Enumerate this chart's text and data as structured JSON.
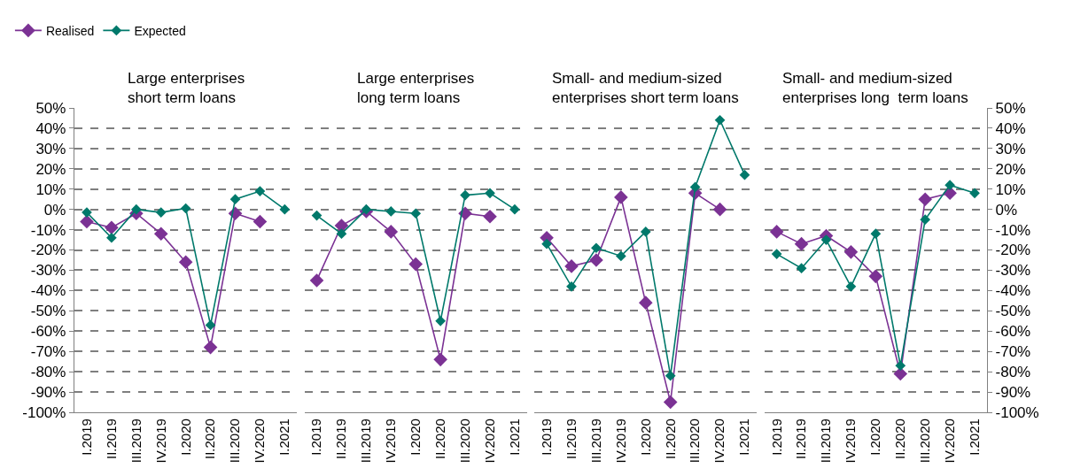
{
  "chart_data": [
    {
      "type": "line",
      "title": "Large enterprises\nshort term loans",
      "categories": [
        "I.2019",
        "II.2019",
        "III.2019",
        "IV.2019",
        "I.2020",
        "II.2020",
        "III.2020",
        "IV.2020",
        "I.2021"
      ],
      "legend": "top left",
      "grid": "y",
      "marker": "diamond",
      "line_style": "solid",
      "ylim": [
        -100,
        50
      ],
      "yticks": [
        {
          "value": 50,
          "label": "50%"
        },
        {
          "value": 40,
          "label": "40%"
        },
        {
          "value": 30,
          "label": "30%"
        },
        {
          "value": 20,
          "label": "20%"
        },
        {
          "value": 10,
          "label": "10%"
        },
        {
          "value": 0,
          "label": "0%"
        },
        {
          "value": -10,
          "label": "-10%"
        },
        {
          "value": -20,
          "label": "-20%"
        },
        {
          "value": -30,
          "label": "-30%"
        },
        {
          "value": -40,
          "label": "-40%"
        },
        {
          "value": -50,
          "label": "-50%"
        },
        {
          "value": -60,
          "label": "-60%"
        },
        {
          "value": -70,
          "label": "-70%"
        },
        {
          "value": -80,
          "label": "-80%"
        },
        {
          "value": -90,
          "label": "-90%"
        },
        {
          "value": -100,
          "label": "-100%"
        }
      ],
      "series": [
        {
          "name": "Realised",
          "color": "#7b3294",
          "values": [
            -6,
            -9,
            -2,
            -12,
            -26,
            -68,
            -2,
            -6,
            null
          ]
        },
        {
          "name": "Expected",
          "color": "#00796b",
          "values": [
            -1.5,
            -14,
            0,
            -1.5,
            0.5,
            -57,
            5,
            9,
            0
          ]
        }
      ]
    },
    {
      "type": "line",
      "title": "Large enterprises\nlong term loans",
      "categories": [
        "I.2019",
        "II.2019",
        "III.2019",
        "IV.2019",
        "I.2020",
        "II.2020",
        "III.2020",
        "IV.2020",
        "I.2021"
      ],
      "grid": "y",
      "marker": "diamond",
      "line_style": "solid",
      "tick_labels": "x",
      "ylim": [
        -100,
        50
      ],
      "yticks": [
        {
          "value": 50,
          "label": null
        },
        {
          "value": 40,
          "label": null
        },
        {
          "value": 30,
          "label": null
        },
        {
          "value": 20,
          "label": null
        },
        {
          "value": 10,
          "label": null
        },
        {
          "value": 0,
          "label": null
        },
        {
          "value": -10,
          "label": null
        },
        {
          "value": -20,
          "label": null
        },
        {
          "value": -30,
          "label": null
        },
        {
          "value": -40,
          "label": null
        },
        {
          "value": -50,
          "label": null
        },
        {
          "value": -60,
          "label": null
        },
        {
          "value": -70,
          "label": null
        },
        {
          "value": -80,
          "label": null
        },
        {
          "value": -90,
          "label": null
        },
        {
          "value": -100,
          "label": null
        }
      ],
      "series": [
        {
          "color": "#7b3294",
          "values": [
            -35,
            -8,
            -1,
            -11,
            -27,
            -74,
            -2,
            -3.5,
            null
          ]
        },
        {
          "color": "#00796b",
          "values": [
            -3,
            -12,
            0,
            -1,
            -2,
            -55,
            7,
            8,
            0
          ]
        }
      ]
    },
    {
      "type": "line",
      "title": "Small- and medium-sized\nenterprises short term loans",
      "categories": [
        "I.2019",
        "II.2019",
        "III.2019",
        "IV.2019",
        "I.2020",
        "II.2020",
        "III.2020",
        "IV.2020",
        "I.2021"
      ],
      "grid": "y",
      "marker": "diamond",
      "line_style": "solid",
      "tick_labels": "x",
      "ylim": [
        -100,
        50
      ],
      "yticks": [
        {
          "value": 50,
          "label": null
        },
        {
          "value": 40,
          "label": null
        },
        {
          "value": 30,
          "label": null
        },
        {
          "value": 20,
          "label": null
        },
        {
          "value": 10,
          "label": null
        },
        {
          "value": 0,
          "label": null
        },
        {
          "value": -10,
          "label": null
        },
        {
          "value": -20,
          "label": null
        },
        {
          "value": -30,
          "label": null
        },
        {
          "value": -40,
          "label": null
        },
        {
          "value": -50,
          "label": null
        },
        {
          "value": -60,
          "label": null
        },
        {
          "value": -70,
          "label": null
        },
        {
          "value": -80,
          "label": null
        },
        {
          "value": -90,
          "label": null
        },
        {
          "value": -100,
          "label": null
        }
      ],
      "series": [
        {
          "color": "#7b3294",
          "values": [
            -14,
            -28,
            -25,
            6,
            -46,
            -95,
            8,
            0,
            null
          ]
        },
        {
          "color": "#00796b",
          "values": [
            -17,
            -38,
            -19,
            -23,
            -11,
            -82,
            11,
            44,
            17
          ]
        }
      ]
    },
    {
      "type": "line",
      "title": "Small- and medium-sized\nenterprises long  term loans",
      "categories": [
        "I.2019",
        "II.2019",
        "III.2019",
        "IV.2019",
        "I.2020",
        "II.2020",
        "III.2020",
        "IV.2020",
        "I.2021"
      ],
      "grid": "y",
      "marker": "diamond",
      "line_style": "solid",
      "y2lim": [
        -100,
        50
      ],
      "y2ticks": [
        {
          "value": 50,
          "label": "50%"
        },
        {
          "value": 40,
          "label": "40%"
        },
        {
          "value": 30,
          "label": "30%"
        },
        {
          "value": 20,
          "label": "20%"
        },
        {
          "value": 10,
          "label": "10%"
        },
        {
          "value": 0,
          "label": "0%"
        },
        {
          "value": -10,
          "label": "-10%"
        },
        {
          "value": -20,
          "label": "-20%"
        },
        {
          "value": -30,
          "label": "-30%"
        },
        {
          "value": -40,
          "label": "-40%"
        },
        {
          "value": -50,
          "label": "-50%"
        },
        {
          "value": -60,
          "label": "-60%"
        },
        {
          "value": -70,
          "label": "-70%"
        },
        {
          "value": -80,
          "label": "-80%"
        },
        {
          "value": -90,
          "label": "-90%"
        },
        {
          "value": -100,
          "label": "-100%"
        }
      ],
      "series": [
        {
          "color": "#7b3294",
          "values": [
            -11,
            -17,
            -13,
            -21,
            -33,
            -81,
            5,
            8,
            null
          ],
          "axis": "y2"
        },
        {
          "color": "#00796b",
          "values": [
            -22,
            -29,
            -15,
            -38,
            -12,
            -77,
            -5,
            12,
            8
          ],
          "axis": "y2"
        }
      ]
    }
  ]
}
